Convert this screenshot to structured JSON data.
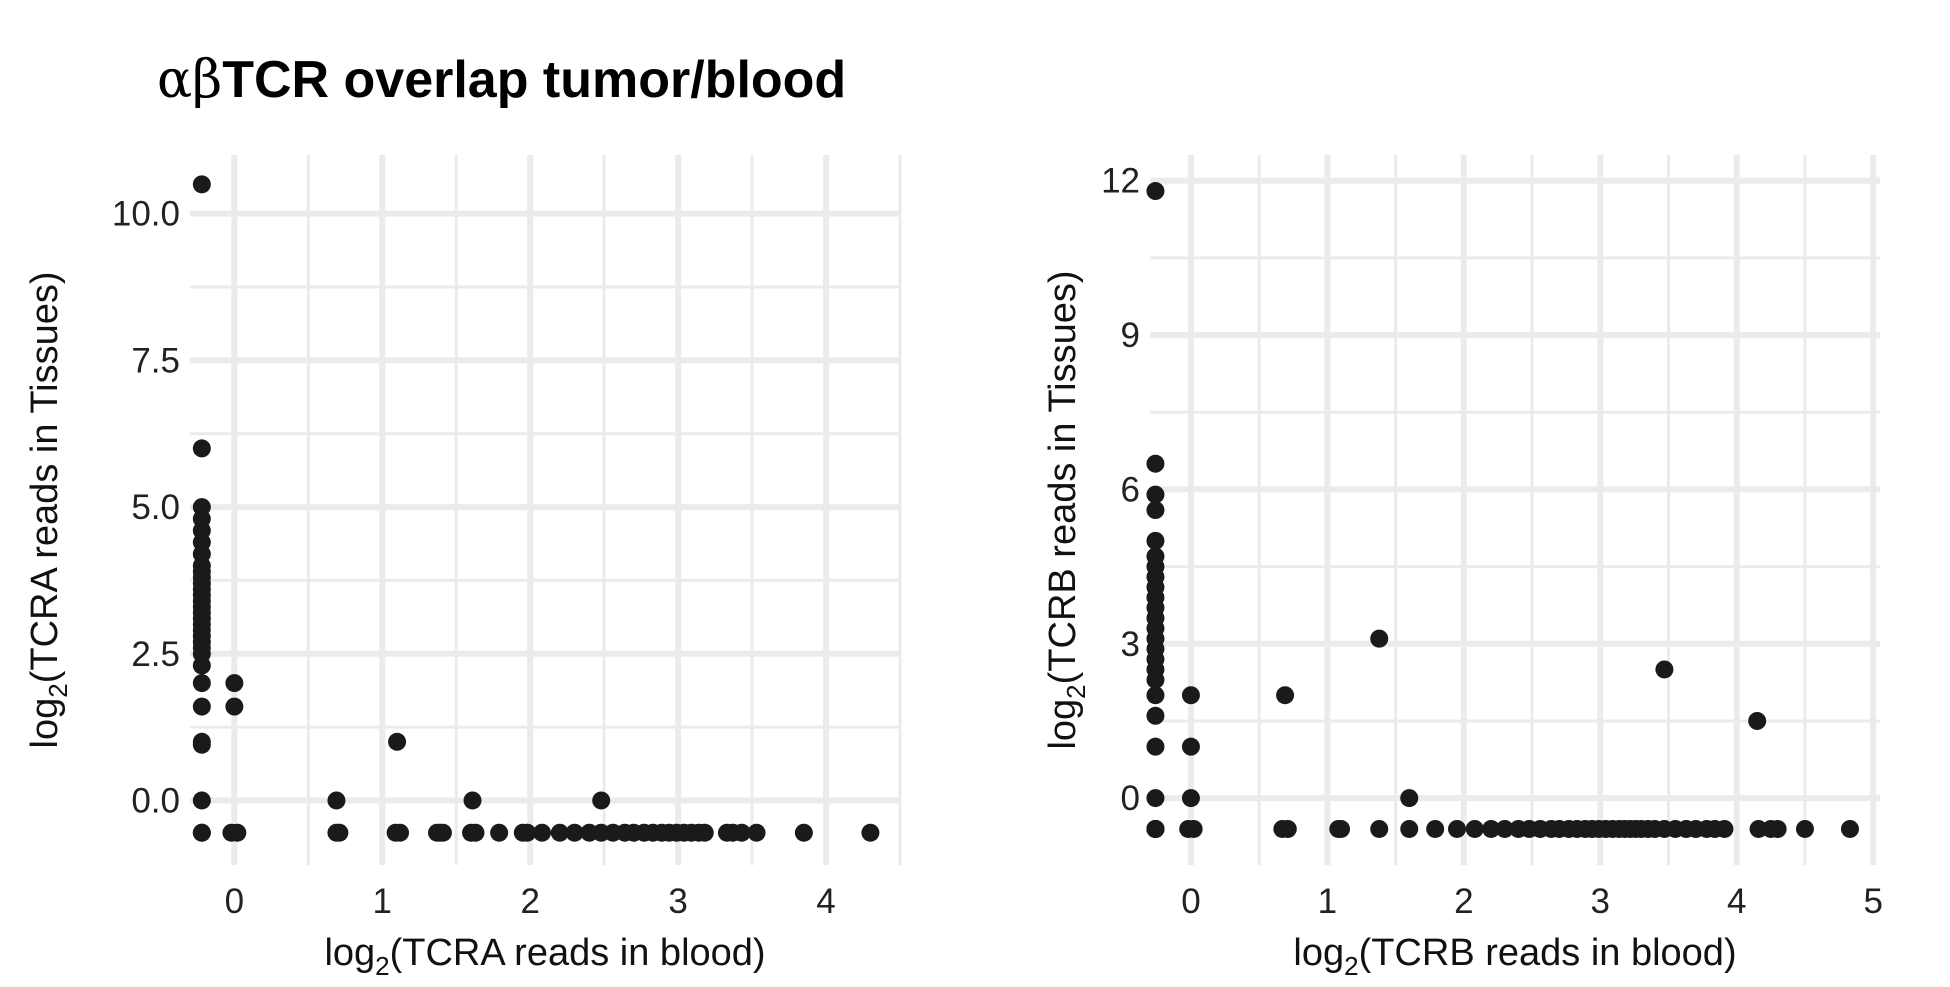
{
  "title": "αβTCR overlap tumor/blood",
  "title_greek": "αβ",
  "title_rest": "TCR overlap tumor/blood",
  "chart_data": [
    {
      "type": "scatter",
      "title": "αβTCR overlap tumor/blood",
      "xlabel": {
        "pre": "log",
        "sub": "2",
        "post": "(TCRA reads in blood)"
      },
      "ylabel": {
        "pre": "log",
        "sub": "2",
        "post": "(TCRA reads in Tissues)"
      },
      "xlim": [
        -0.3,
        4.5
      ],
      "ylim": [
        -1.1,
        11.0
      ],
      "xticks": [
        0,
        1,
        2,
        3,
        4
      ],
      "xtick_labels": [
        "0",
        "1",
        "2",
        "3",
        "4"
      ],
      "yticks": [
        0,
        2.5,
        5,
        7.5,
        10
      ],
      "ytick_labels": [
        "0.0",
        "2.5",
        "5.0",
        "7.5",
        "10.0"
      ],
      "grid": true,
      "point_color": "#1a1a1a",
      "grid_color": "#ebebeb",
      "x": [
        -0.22,
        -0.22,
        -0.22,
        -0.22,
        -0.22,
        -0.22,
        -0.22,
        -0.22,
        -0.22,
        -0.22,
        -0.22,
        -0.22,
        -0.22,
        -0.22,
        -0.22,
        -0.22,
        -0.22,
        -0.22,
        -0.22,
        -0.22,
        -0.22,
        -0.22,
        -0.22,
        -0.22,
        -0.22,
        -0.22,
        -0.22,
        -0.22,
        -0.22,
        -0.22,
        -0.22,
        0,
        0,
        -0.02,
        0.02,
        0.69,
        0.69,
        0.71,
        1.1,
        1.09,
        1.12,
        1.39,
        1.37,
        1.41,
        1.61,
        1.6,
        1.63,
        1.79,
        1.95,
        1.98,
        2.08,
        2.2,
        2.3,
        2.4,
        2.48,
        2.56,
        2.64,
        2.7,
        2.77,
        2.83,
        2.89,
        2.94,
        2.99,
        3.04,
        3.09,
        3.14,
        3.18,
        3.33,
        3.37,
        3.43,
        3.53,
        3.85,
        4.3,
        2.48
      ],
      "y": [
        10.5,
        6.0,
        5.0,
        4.8,
        4.6,
        4.4,
        4.2,
        4.0,
        3.9,
        3.8,
        3.7,
        3.6,
        3.5,
        3.4,
        3.3,
        3.2,
        3.1,
        3.0,
        2.9,
        2.8,
        2.7,
        2.6,
        2.5,
        2.3,
        2.0,
        1.6,
        1.0,
        0.95,
        0.0,
        -0.55,
        -0.55,
        2.0,
        1.6,
        -0.55,
        -0.55,
        0.0,
        -0.55,
        -0.55,
        1.0,
        -0.55,
        -0.55,
        -0.55,
        -0.55,
        -0.55,
        0.0,
        -0.55,
        -0.55,
        -0.55,
        -0.55,
        -0.55,
        -0.55,
        -0.55,
        -0.55,
        -0.55,
        -0.55,
        -0.55,
        -0.55,
        -0.55,
        -0.55,
        -0.55,
        -0.55,
        -0.55,
        -0.55,
        -0.55,
        -0.55,
        -0.55,
        -0.55,
        -0.55,
        -0.55,
        -0.55,
        -0.55,
        -0.55,
        -0.55,
        0.0
      ]
    },
    {
      "type": "scatter",
      "xlabel": {
        "pre": "log",
        "sub": "2",
        "post": "(TCRB reads in blood)"
      },
      "ylabel": {
        "pre": "log",
        "sub": "2",
        "post": "(TCRB reads in Tissues)"
      },
      "xlim": [
        -0.3,
        5.05
      ],
      "ylim": [
        -1.3,
        12.5
      ],
      "xticks": [
        0,
        1,
        2,
        3,
        4,
        5
      ],
      "xtick_labels": [
        "0",
        "1",
        "2",
        "3",
        "4",
        "5"
      ],
      "yticks": [
        0,
        3,
        6,
        9,
        12
      ],
      "ytick_labels": [
        "0",
        "3",
        "6",
        "9",
        "12"
      ],
      "grid": true,
      "point_color": "#1a1a1a",
      "grid_color": "#ebebeb",
      "x": [
        -0.26,
        -0.26,
        -0.26,
        -0.26,
        -0.26,
        -0.26,
        -0.26,
        -0.26,
        -0.26,
        -0.26,
        -0.26,
        -0.26,
        -0.26,
        -0.26,
        -0.26,
        -0.26,
        -0.26,
        -0.26,
        -0.26,
        -0.26,
        -0.26,
        -0.26,
        -0.26,
        -0.26,
        -0.26,
        -0.26,
        -0.26,
        -0.26,
        0,
        0,
        0,
        -0.02,
        0.02,
        0.69,
        0.67,
        0.71,
        1.08,
        1.1,
        1.38,
        1.38,
        1.6,
        1.6,
        1.79,
        1.95,
        2.08,
        2.2,
        2.3,
        2.4,
        2.48,
        2.56,
        2.64,
        2.7,
        2.77,
        2.83,
        2.89,
        2.94,
        2.99,
        3.04,
        3.09,
        3.14,
        3.18,
        3.22,
        3.26,
        3.3,
        3.35,
        3.4,
        3.47,
        3.47,
        3.55,
        3.63,
        3.7,
        3.78,
        3.84,
        3.91,
        4.15,
        4.16,
        4.25,
        4.3,
        4.5,
        4.83
      ],
      "y": [
        11.8,
        6.5,
        5.9,
        5.6,
        5.0,
        4.7,
        4.5,
        4.3,
        4.1,
        3.9,
        3.7,
        3.5,
        3.3,
        3.1,
        2.9,
        2.7,
        2.5,
        2.3,
        2.0,
        1.6,
        1.0,
        0.0,
        -0.6,
        -0.6,
        -0.6,
        -0.6,
        -0.6,
        -0.6,
        2.0,
        1.0,
        0.0,
        -0.6,
        -0.6,
        2.0,
        -0.6,
        -0.6,
        -0.6,
        -0.6,
        3.1,
        -0.6,
        0.0,
        -0.6,
        -0.6,
        -0.6,
        -0.6,
        -0.6,
        -0.6,
        -0.6,
        -0.6,
        -0.6,
        -0.6,
        -0.6,
        -0.6,
        -0.6,
        -0.6,
        -0.6,
        -0.6,
        -0.6,
        -0.6,
        -0.6,
        -0.6,
        -0.6,
        -0.6,
        -0.6,
        -0.6,
        -0.6,
        2.5,
        -0.6,
        -0.6,
        -0.6,
        -0.6,
        -0.6,
        -0.6,
        -0.6,
        1.5,
        -0.6,
        -0.6,
        -0.6,
        -0.6,
        -0.6
      ]
    }
  ]
}
